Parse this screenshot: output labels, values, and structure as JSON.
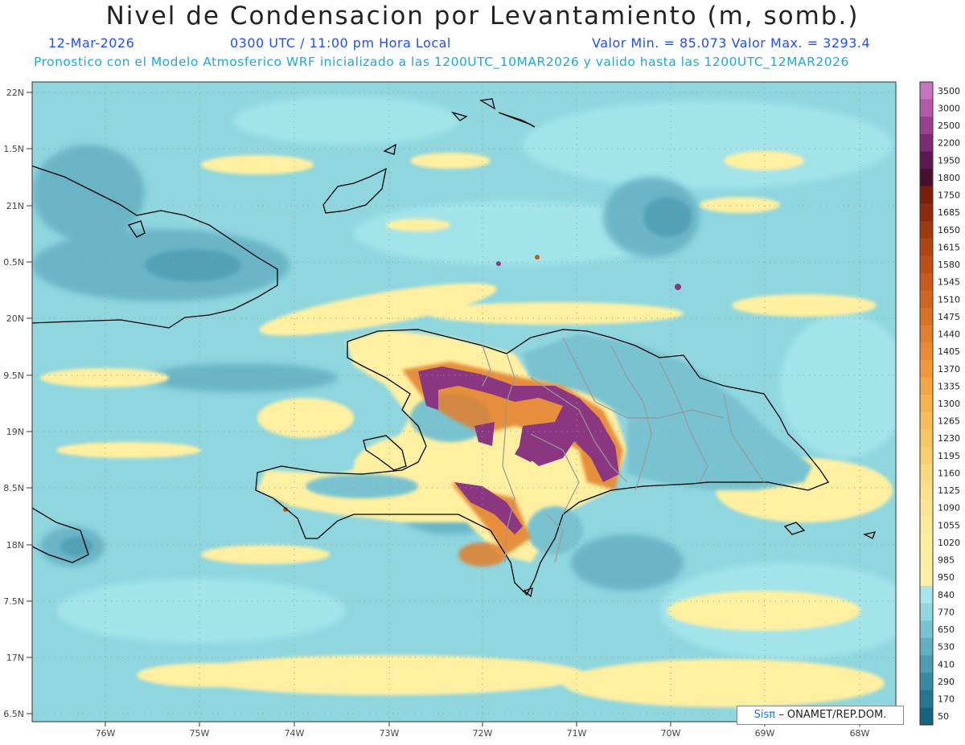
{
  "title": "Nivel de Condensacion por Levantamiento (m, somb.)",
  "date": "12-Mar-2026",
  "time": "0300 UTC / 11:00 pm Hora Local",
  "minmax": "Valor Min. = 85.073  Valor Max. = 3293.4",
  "model_line": "Pronostico con el Modelo Atmosferico WRF inicializado a las 1200UTC_10MAR2026 y valido hasta las  1200UTC_12MAR2026",
  "credit": {
    "logo": "Sisπ",
    "text": "– ONAMET/REP.DOM."
  },
  "lat_labels": [
    "22N",
    "1.5N",
    "21N",
    "0.5N",
    "20N",
    "9.5N",
    "19N",
    "8.5N",
    "18N",
    "7.5N",
    "17N",
    "6.5N"
  ],
  "lon_labels": [
    "76W",
    "75W",
    "74W",
    "73W",
    "72W",
    "71W",
    "70W",
    "69W",
    "68W"
  ],
  "colorbar": {
    "levels": [
      "3500",
      "3000",
      "2500",
      "2200",
      "1950",
      "1800",
      "1750",
      "1685",
      "1650",
      "1615",
      "1580",
      "1545",
      "1510",
      "1475",
      "1440",
      "1405",
      "1370",
      "1335",
      "1300",
      "1265",
      "1230",
      "1195",
      "1160",
      "1125",
      "1090",
      "1055",
      "1020",
      "985",
      "950",
      "840",
      "770",
      "650",
      "530",
      "410",
      "290",
      "170",
      "50"
    ],
    "colors": [
      "#c674c0",
      "#b45aaa",
      "#9a3f92",
      "#7d2a75",
      "#5e1750",
      "#4a0e2e",
      "#7a1e0c",
      "#8c2a0e",
      "#a03810",
      "#b04414",
      "#be4e18",
      "#c85a1c",
      "#d26620",
      "#da7226",
      "#e27e2c",
      "#ea8a32",
      "#f09838",
      "#f4a640",
      "#f6b24c",
      "#f8bc58",
      "#f9c664",
      "#facf72",
      "#fbd87e",
      "#fcdf88",
      "#fde592",
      "#feea9a",
      "#feee9e",
      "#fef0a0",
      "#fef2a4",
      "#a6e6ec",
      "#8fd6df",
      "#79c3d0",
      "#63b0c2",
      "#4e9db3",
      "#3a89a4",
      "#277694",
      "#166482"
    ]
  },
  "legend_colors": {
    "sea": "#8fd6df",
    "dry": "#fef0a0",
    "high": "#8a3680",
    "mid": "#e27e2c",
    "low": "#4e9db3"
  }
}
